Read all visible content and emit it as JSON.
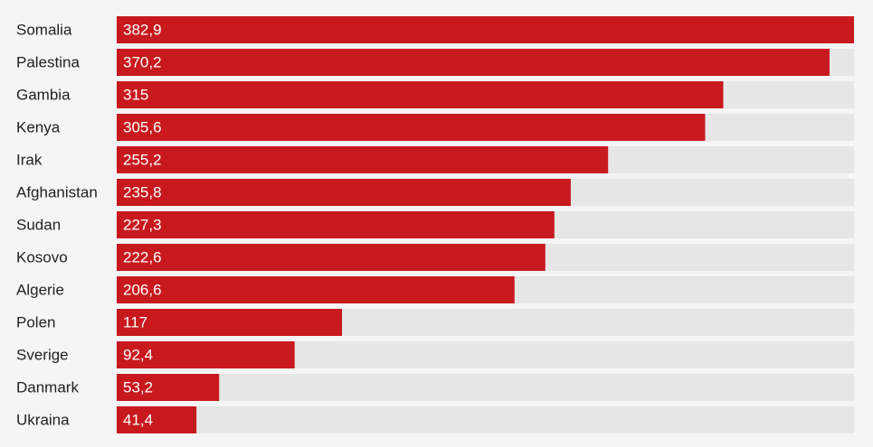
{
  "chart_data": {
    "type": "bar",
    "orientation": "horizontal",
    "color": "#c8191e",
    "track_color": "#e6e6e6",
    "categories": [
      "Somalia",
      "Palestina",
      "Gambia",
      "Kenya",
      "Irak",
      "Afghanistan",
      "Sudan",
      "Kosovo",
      "Algerie",
      "Polen",
      "Sverige",
      "Danmark",
      "Ukraina"
    ],
    "values": [
      382.9,
      370.2,
      315,
      305.6,
      255.2,
      235.8,
      227.3,
      222.6,
      206.6,
      117,
      92.4,
      53.2,
      41.4
    ],
    "value_labels": [
      "382,9",
      "370,2",
      "315",
      "305,6",
      "255,2",
      "235,8",
      "227,3",
      "222,6",
      "206,6",
      "117",
      "92,4",
      "53,2",
      "41,4"
    ]
  }
}
